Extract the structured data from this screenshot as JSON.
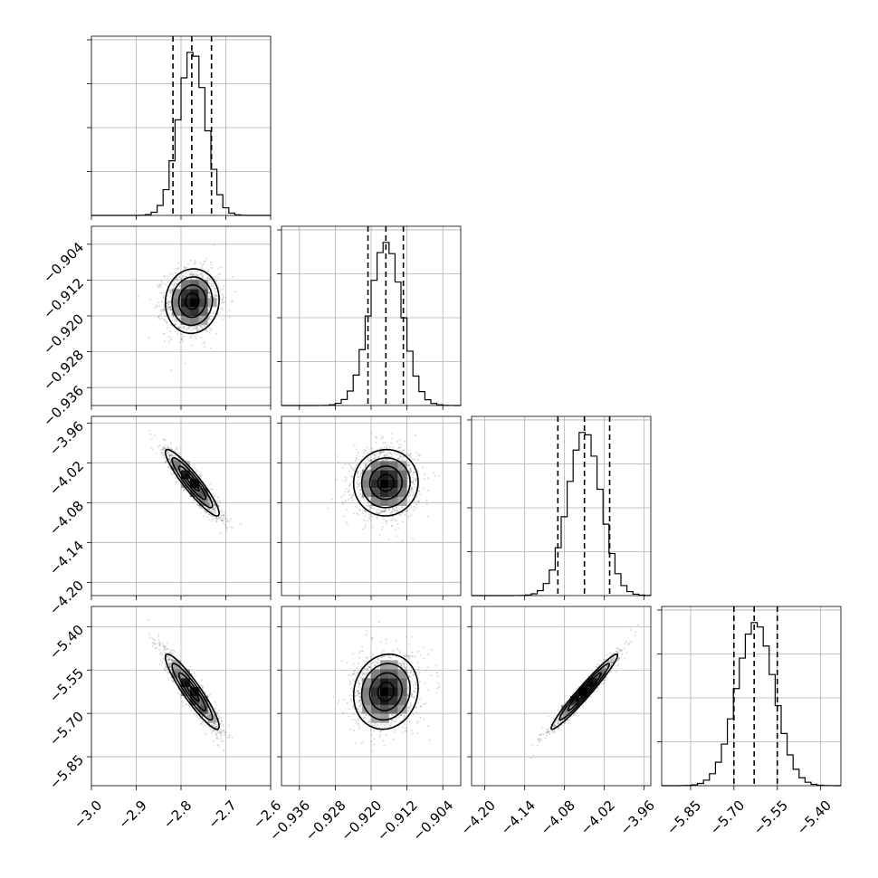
{
  "chart_data": {
    "type": "corner",
    "parameters": [
      {
        "xticks": [
          "−3.0",
          "−2.9",
          "−2.8",
          "−2.7",
          "−2.6"
        ],
        "yticks": [],
        "range": [
          -3.0,
          -2.6
        ],
        "mean": -2.775,
        "sd": 0.03,
        "quantiles": [
          -2.818,
          -2.776,
          -2.732
        ]
      },
      {
        "xticks": [
          "−0.936",
          "−0.928",
          "−0.920",
          "−0.912",
          "−0.904"
        ],
        "yticks": [
          "−0.904",
          "−0.912",
          "−0.920",
          "−0.928",
          "−0.936"
        ],
        "range": [
          -0.94,
          -0.9
        ],
        "mean": -0.9167,
        "sd": 0.0036,
        "quantiles": [
          -0.9207,
          -0.9167,
          -0.9128
        ]
      },
      {
        "xticks": [
          "−4.20",
          "−4.14",
          "−4.08",
          "−4.02",
          "−3.96"
        ],
        "yticks": [
          "−3.96",
          "−4.02",
          "−4.08",
          "−4.14",
          "−4.20"
        ],
        "range": [
          -4.22,
          -3.95
        ],
        "mean": -4.05,
        "sd": 0.025,
        "quantiles": [
          -4.09,
          -4.05,
          -4.012
        ]
      },
      {
        "xticks": [
          "−5.85",
          "−5.70",
          "−5.55",
          "−5.40"
        ],
        "yticks": [
          "−5.40",
          "−5.55",
          "−5.70",
          "−5.85"
        ],
        "range": [
          -5.95,
          -5.33
        ],
        "mean": -5.625,
        "sd": 0.065,
        "quantiles": [
          -5.7,
          -5.63,
          -5.55
        ]
      }
    ],
    "correlations": [
      {
        "row": 1,
        "col": 0,
        "rho": 0.05
      },
      {
        "row": 2,
        "col": 0,
        "rho": -0.92
      },
      {
        "row": 2,
        "col": 1,
        "rho": 0.02
      },
      {
        "row": 3,
        "col": 0,
        "rho": -0.92
      },
      {
        "row": 3,
        "col": 1,
        "rho": 0.1
      },
      {
        "row": 3,
        "col": 2,
        "rho": 0.97
      }
    ],
    "grid": true
  }
}
